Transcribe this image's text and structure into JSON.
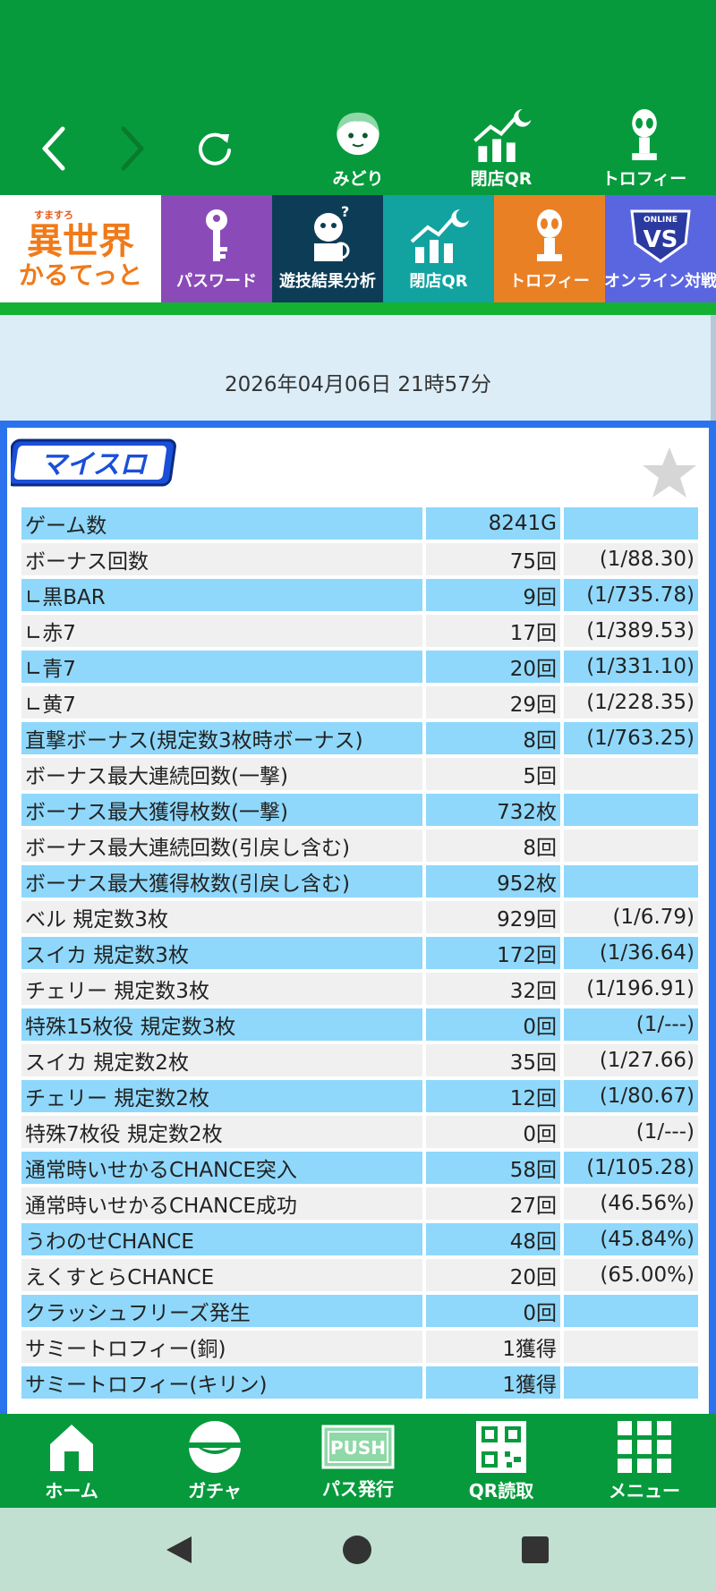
{
  "top_bar": {
    "icons": [
      {
        "label": "みどり",
        "icon": "midori-character-icon"
      },
      {
        "label": "閉店QR",
        "icon": "chart-moon-icon"
      },
      {
        "label": "トロフィー",
        "icon": "alien-trophy-icon"
      }
    ]
  },
  "banner": {
    "logo_line1": "異世界",
    "logo_line2": "かるてっと",
    "logo_small": "すますろ",
    "tiles": [
      {
        "label": "パスワード",
        "color": "#8a4bb8"
      },
      {
        "label": "遊技結果分析",
        "color": "#0d3d56"
      },
      {
        "label": "閉店QR",
        "color": "#12a3a0"
      },
      {
        "label": "トロフィー",
        "color": "#ea8024"
      },
      {
        "label": "オンライン対戦",
        "color": "#5a66e0"
      }
    ],
    "vs_small": "ONLINE",
    "vs_text": "VS"
  },
  "datetime": "2026年04月06日 21時57分",
  "panel": {
    "logo_text": "マイスロ",
    "rows": [
      {
        "name": "ゲーム数",
        "value": "8241G",
        "ratio": ""
      },
      {
        "name": "ボーナス回数",
        "value": "75回",
        "ratio": "(1/88.30)"
      },
      {
        "name": "∟黒BAR",
        "value": "9回",
        "ratio": "(1/735.78)"
      },
      {
        "name": "∟赤7",
        "value": "17回",
        "ratio": "(1/389.53)"
      },
      {
        "name": "∟青7",
        "value": "20回",
        "ratio": "(1/331.10)"
      },
      {
        "name": "∟黄7",
        "value": "29回",
        "ratio": "(1/228.35)"
      },
      {
        "name": "直撃ボーナス(規定数3枚時ボーナス)",
        "value": "8回",
        "ratio": "(1/763.25)"
      },
      {
        "name": "ボーナス最大連続回数(一撃)",
        "value": "5回",
        "ratio": ""
      },
      {
        "name": "ボーナス最大獲得枚数(一撃)",
        "value": "732枚",
        "ratio": ""
      },
      {
        "name": "ボーナス最大連続回数(引戻し含む)",
        "value": "8回",
        "ratio": ""
      },
      {
        "name": "ボーナス最大獲得枚数(引戻し含む)",
        "value": "952枚",
        "ratio": ""
      },
      {
        "name": "ベル 規定数3枚",
        "value": "929回",
        "ratio": "(1/6.79)"
      },
      {
        "name": "スイカ 規定数3枚",
        "value": "172回",
        "ratio": "(1/36.64)"
      },
      {
        "name": "チェリー 規定数3枚",
        "value": "32回",
        "ratio": "(1/196.91)"
      },
      {
        "name": "特殊15枚役 規定数3枚",
        "value": "0回",
        "ratio": "(1/---)"
      },
      {
        "name": "スイカ 規定数2枚",
        "value": "35回",
        "ratio": "(1/27.66)"
      },
      {
        "name": "チェリー 規定数2枚",
        "value": "12回",
        "ratio": "(1/80.67)"
      },
      {
        "name": "特殊7枚役 規定数2枚",
        "value": "0回",
        "ratio": "(1/---)"
      },
      {
        "name": "通常時いせかるCHANCE突入",
        "value": "58回",
        "ratio": "(1/105.28)"
      },
      {
        "name": "通常時いせかるCHANCE成功",
        "value": "27回",
        "ratio": "(46.56%)"
      },
      {
        "name": "うわのせCHANCE",
        "value": "48回",
        "ratio": "(45.84%)"
      },
      {
        "name": "えくすとらCHANCE",
        "value": "20回",
        "ratio": "(65.00%)"
      },
      {
        "name": "クラッシュフリーズ発生",
        "value": "0回",
        "ratio": ""
      },
      {
        "name": "サミートロフィー(銅)",
        "value": "1獲得",
        "ratio": ""
      },
      {
        "name": "サミートロフィー(キリン)",
        "value": "1獲得",
        "ratio": ""
      }
    ]
  },
  "bottom_nav": {
    "items": [
      {
        "label": "ホーム",
        "icon": "home-icon"
      },
      {
        "label": "ガチャ",
        "icon": "gacha-ball-icon"
      },
      {
        "label": "パス発行",
        "icon": "push-icon",
        "push_text": "PUSH"
      },
      {
        "label": "QR読取",
        "icon": "qr-code-icon"
      },
      {
        "label": "メニュー",
        "icon": "grid-menu-icon"
      }
    ]
  },
  "colors": {
    "brand_green": "#069a3c",
    "row_blue": "#8fd8fb",
    "row_grey": "#f0f0f0",
    "panel_border": "#2a73ec"
  }
}
